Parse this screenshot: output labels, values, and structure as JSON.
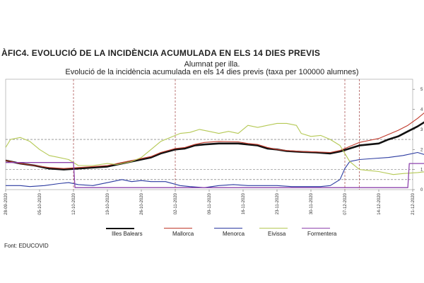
{
  "figure_title": "ÀFIC4. EVOLUCIÓ DE LA INCIDÈNCIA ACUMULADA EN ELS 14 DIES PREVIS",
  "source": "Font: EDUCOVID",
  "chart_data": {
    "type": "line",
    "title": "Alumnat per illa.",
    "subtitle": "Evolució de la incidència acumulada en els 14 dies previs (taxa per 100000 alumnes)",
    "x_tick_labels": [
      "28-09-2020",
      "05-10-2020",
      "12-10-2020",
      "19-10-2020",
      "26-10-2020",
      "02-11-2020",
      "09-11-2020",
      "16-11-2020",
      "23-11-2020",
      "30-11-2020",
      "07-12-2020",
      "14-12-2020",
      "21-12-2020"
    ],
    "y_tick_labels": [
      "0",
      "1",
      "2",
      "3",
      "4",
      "5"
    ],
    "ylim": [
      0,
      5.5
    ],
    "grid": false,
    "legend_position": "bottom",
    "reference_lines": [
      {
        "y": 2.5,
        "color": "#666666",
        "style": "dashed"
      },
      {
        "y": 1.0,
        "color": "#666666",
        "style": "dashed"
      },
      {
        "y": 0.5,
        "color": "#666666",
        "style": "dashed"
      },
      {
        "x": 14,
        "color": "#a04040",
        "style": "dashed"
      },
      {
        "x": 35,
        "color": "#a04040",
        "style": "dashed"
      },
      {
        "x": 70,
        "color": "#a04040",
        "style": "dashed"
      },
      {
        "x": 73,
        "color": "#a04040",
        "style": "dashed"
      }
    ],
    "series": [
      {
        "name": "Illes Balears",
        "color": "#111111",
        "width": 2.6,
        "points": [
          [
            0,
            1.45
          ],
          [
            3,
            1.3
          ],
          [
            6,
            1.2
          ],
          [
            9,
            1.05
          ],
          [
            12,
            1.0
          ],
          [
            15,
            1.05
          ],
          [
            18,
            1.1
          ],
          [
            21,
            1.15
          ],
          [
            24,
            1.3
          ],
          [
            27,
            1.45
          ],
          [
            30,
            1.6
          ],
          [
            32,
            1.8
          ],
          [
            35,
            2.0
          ],
          [
            37,
            2.05
          ],
          [
            39,
            2.2
          ],
          [
            41,
            2.25
          ],
          [
            44,
            2.3
          ],
          [
            48,
            2.3
          ],
          [
            50,
            2.25
          ],
          [
            52,
            2.2
          ],
          [
            54,
            2.05
          ],
          [
            56,
            2.0
          ],
          [
            58,
            1.92
          ],
          [
            61,
            1.88
          ],
          [
            64,
            1.85
          ],
          [
            67,
            1.8
          ],
          [
            69,
            1.9
          ],
          [
            71,
            2.05
          ],
          [
            73,
            2.2
          ],
          [
            75,
            2.25
          ],
          [
            77,
            2.3
          ],
          [
            79,
            2.5
          ],
          [
            81,
            2.65
          ],
          [
            83,
            2.9
          ],
          [
            85,
            3.15
          ],
          [
            87,
            3.45
          ],
          [
            89,
            3.8
          ],
          [
            91,
            4.15
          ],
          [
            92,
            4.3
          ]
        ]
      },
      {
        "name": "Mallorca",
        "color": "#c0392b",
        "width": 1.1,
        "points": [
          [
            0,
            1.45
          ],
          [
            3,
            1.3
          ],
          [
            6,
            1.2
          ],
          [
            9,
            1.1
          ],
          [
            12,
            1.05
          ],
          [
            15,
            1.1
          ],
          [
            18,
            1.15
          ],
          [
            21,
            1.2
          ],
          [
            24,
            1.35
          ],
          [
            27,
            1.5
          ],
          [
            30,
            1.65
          ],
          [
            32,
            1.85
          ],
          [
            35,
            2.05
          ],
          [
            37,
            2.1
          ],
          [
            39,
            2.25
          ],
          [
            41,
            2.35
          ],
          [
            44,
            2.4
          ],
          [
            48,
            2.38
          ],
          [
            50,
            2.3
          ],
          [
            52,
            2.25
          ],
          [
            54,
            2.1
          ],
          [
            56,
            2.0
          ],
          [
            58,
            1.95
          ],
          [
            61,
            1.9
          ],
          [
            64,
            1.88
          ],
          [
            67,
            1.85
          ],
          [
            69,
            1.95
          ],
          [
            71,
            2.15
          ],
          [
            73,
            2.35
          ],
          [
            75,
            2.45
          ],
          [
            77,
            2.55
          ],
          [
            79,
            2.75
          ],
          [
            81,
            2.95
          ],
          [
            83,
            3.2
          ],
          [
            85,
            3.55
          ],
          [
            87,
            3.95
          ],
          [
            89,
            4.4
          ],
          [
            91,
            4.9
          ],
          [
            92,
            5.2
          ]
        ]
      },
      {
        "name": "Menorca",
        "color": "#2b3aa0",
        "width": 1.1,
        "points": [
          [
            0,
            0.2
          ],
          [
            3,
            0.2
          ],
          [
            5,
            0.15
          ],
          [
            8,
            0.2
          ],
          [
            11,
            0.3
          ],
          [
            13,
            0.35
          ],
          [
            15,
            0.25
          ],
          [
            18,
            0.2
          ],
          [
            22,
            0.4
          ],
          [
            24,
            0.5
          ],
          [
            26,
            0.4
          ],
          [
            28,
            0.45
          ],
          [
            30,
            0.4
          ],
          [
            33,
            0.4
          ],
          [
            36,
            0.2
          ],
          [
            38,
            0.15
          ],
          [
            41,
            0.1
          ],
          [
            44,
            0.2
          ],
          [
            47,
            0.25
          ],
          [
            50,
            0.2
          ],
          [
            53,
            0.2
          ],
          [
            56,
            0.2
          ],
          [
            59,
            0.15
          ],
          [
            62,
            0.15
          ],
          [
            65,
            0.15
          ],
          [
            67,
            0.2
          ],
          [
            69,
            0.5
          ],
          [
            70,
            1.05
          ],
          [
            71,
            1.4
          ],
          [
            73,
            1.5
          ],
          [
            76,
            1.55
          ],
          [
            79,
            1.6
          ],
          [
            82,
            1.7
          ],
          [
            85,
            1.85
          ],
          [
            87,
            1.7
          ],
          [
            88,
            1.3
          ],
          [
            89,
            0.6
          ],
          [
            91,
            0.4
          ],
          [
            92,
            0.4
          ]
        ]
      },
      {
        "name": "Eivissa",
        "color": "#b5c955",
        "width": 1.1,
        "points": [
          [
            0,
            2.1
          ],
          [
            1,
            2.5
          ],
          [
            3,
            2.6
          ],
          [
            5,
            2.4
          ],
          [
            7,
            2.0
          ],
          [
            9,
            1.7
          ],
          [
            11,
            1.6
          ],
          [
            13,
            1.5
          ],
          [
            15,
            1.2
          ],
          [
            18,
            1.2
          ],
          [
            21,
            1.3
          ],
          [
            23,
            1.25
          ],
          [
            26,
            1.4
          ],
          [
            28,
            1.6
          ],
          [
            30,
            2.0
          ],
          [
            32,
            2.4
          ],
          [
            34,
            2.6
          ],
          [
            36,
            2.8
          ],
          [
            38,
            2.85
          ],
          [
            40,
            3.0
          ],
          [
            42,
            2.9
          ],
          [
            44,
            2.8
          ],
          [
            46,
            2.9
          ],
          [
            48,
            2.8
          ],
          [
            50,
            3.2
          ],
          [
            52,
            3.1
          ],
          [
            54,
            3.2
          ],
          [
            56,
            3.3
          ],
          [
            58,
            3.3
          ],
          [
            60,
            3.2
          ],
          [
            61,
            2.8
          ],
          [
            63,
            2.65
          ],
          [
            65,
            2.7
          ],
          [
            67,
            2.5
          ],
          [
            69,
            2.2
          ],
          [
            71,
            1.4
          ],
          [
            73,
            1.0
          ],
          [
            75,
            0.95
          ],
          [
            77,
            0.9
          ],
          [
            80,
            0.75
          ],
          [
            82,
            0.8
          ],
          [
            85,
            0.85
          ],
          [
            87,
            0.9
          ],
          [
            89,
            1.05
          ],
          [
            91,
            1.1
          ],
          [
            92,
            1.05
          ]
        ]
      },
      {
        "name": "Formentera",
        "color": "#8e44ad",
        "width": 1.3,
        "points": [
          [
            0,
            1.35
          ],
          [
            3,
            1.35
          ],
          [
            6,
            1.35
          ],
          [
            9,
            1.35
          ],
          [
            12,
            1.35
          ],
          [
            14,
            1.35
          ],
          [
            14.3,
            0.1
          ],
          [
            20,
            0.1
          ],
          [
            30,
            0.1
          ],
          [
            40,
            0.1
          ],
          [
            50,
            0.1
          ],
          [
            60,
            0.1
          ],
          [
            70,
            0.1
          ],
          [
            80,
            0.1
          ],
          [
            83,
            0.1
          ],
          [
            83.3,
            1.3
          ],
          [
            86,
            1.3
          ],
          [
            88,
            1.3
          ],
          [
            90,
            1.3
          ],
          [
            90.3,
            2.0
          ],
          [
            91,
            2.5
          ],
          [
            92,
            3.3
          ]
        ]
      }
    ]
  }
}
